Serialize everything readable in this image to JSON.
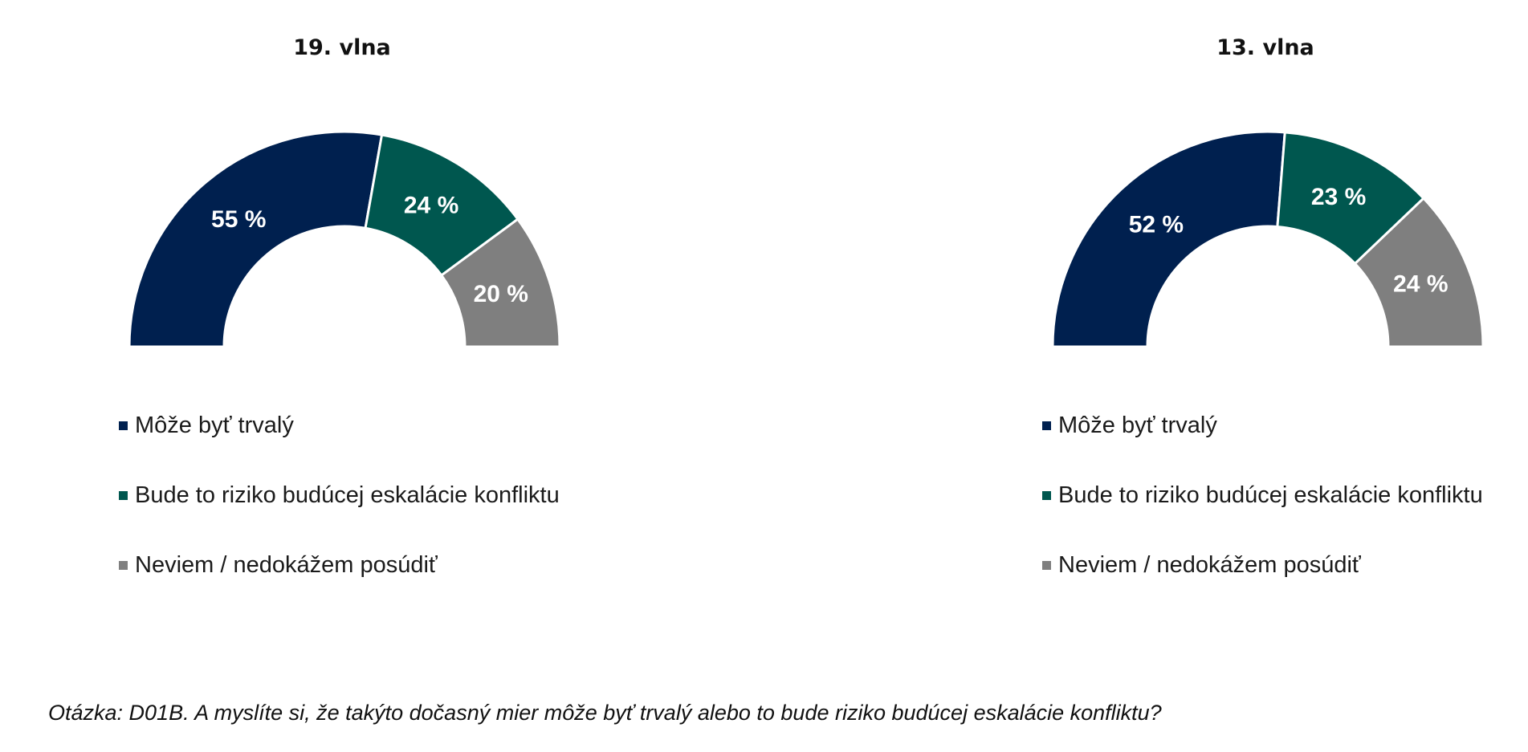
{
  "colors": {
    "trvaly": "#00204f",
    "riziko": "#00574f",
    "neviem": "#7f7f7f"
  },
  "chart_data": [
    {
      "type": "pie",
      "variant": "half-donut",
      "title": "19. vlna",
      "categories": [
        "Môže byť trvalý",
        "Bude to riziko budúcej eskalácie konfliktu",
        "Neviem / nedokážem posúdiť"
      ],
      "values": [
        55,
        24,
        20
      ],
      "labels": [
        "55 %",
        "24 %",
        "20 %"
      ],
      "legend": "bottom"
    },
    {
      "type": "pie",
      "variant": "half-donut",
      "title": "13. vlna",
      "categories": [
        "Môže byť trvalý",
        "Bude to riziko budúcej eskalácie konfliktu",
        "Neviem / nedokážem posúdiť"
      ],
      "values": [
        52,
        23,
        24
      ],
      "labels": [
        "52 %",
        "23 %",
        "24 %"
      ],
      "legend": "bottom"
    }
  ],
  "footer": {
    "question": "Otázka: D01B. A myslíte si, že takýto dočasný mier môže byť trvalý alebo to bude riziko budúcej eskalácie konfliktu?"
  }
}
